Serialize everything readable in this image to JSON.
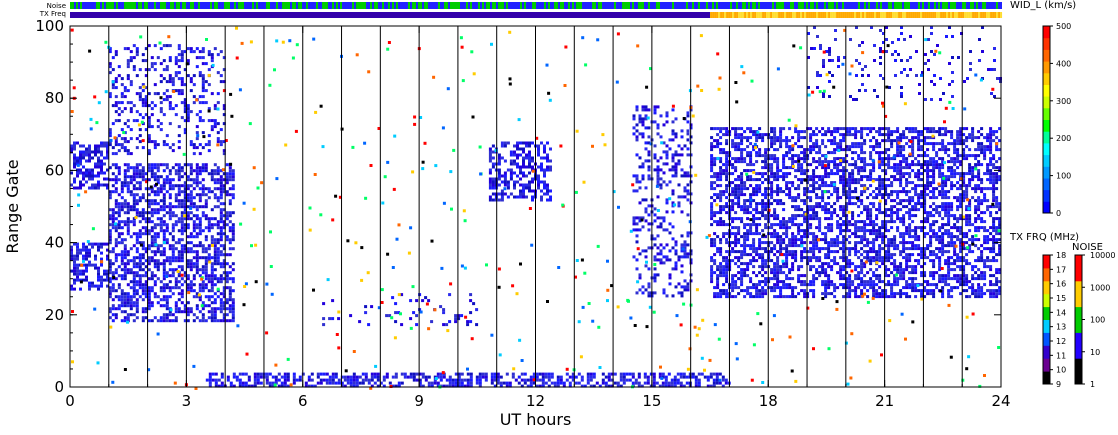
{
  "chart_data": {
    "type": "heatmap",
    "xlabel": "UT hours",
    "ylabel": "Range Gate",
    "xlim": [
      0,
      24
    ],
    "ylim": [
      0,
      100
    ],
    "xticks": [
      "0",
      "3",
      "6",
      "9",
      "12",
      "15",
      "18",
      "21",
      "24"
    ],
    "yticks": [
      "0",
      "20",
      "40",
      "60",
      "80",
      "100"
    ],
    "vertical_lines_hours": [
      1,
      2,
      3,
      4,
      5,
      6,
      7,
      8,
      9,
      10,
      11,
      12,
      13,
      14,
      15,
      16,
      17,
      18,
      19,
      20,
      21,
      22,
      23
    ],
    "strip_labels": [
      "Noise",
      "TX Freq"
    ],
    "scatter_regions": [
      {
        "name": "dense band lower-left",
        "x": [
          1.0,
          4.2
        ],
        "y": [
          18,
          62
        ],
        "density": "high"
      },
      {
        "name": "band near 60",
        "x": [
          0.0,
          1.0
        ],
        "y": [
          55,
          68
        ],
        "density": "high"
      },
      {
        "name": "lower band 0-1h",
        "x": [
          0.0,
          1.0
        ],
        "y": [
          27,
          40
        ],
        "density": "high"
      },
      {
        "name": "upper streak 1-4h",
        "x": [
          1.0,
          4.0
        ],
        "y": [
          65,
          95
        ],
        "density": "medium"
      },
      {
        "name": "near ground echoes",
        "x": [
          3.5,
          17.0
        ],
        "y": [
          0,
          4
        ],
        "density": "high"
      },
      {
        "name": "band 11-12.5h",
        "x": [
          10.8,
          12.4
        ],
        "y": [
          52,
          68
        ],
        "density": "high"
      },
      {
        "name": "band 7-10h",
        "x": [
          6.5,
          10.5
        ],
        "y": [
          17,
          26
        ],
        "density": "low"
      },
      {
        "name": "streak 14.5-16h",
        "x": [
          14.5,
          16.0
        ],
        "y": [
          25,
          78
        ],
        "density": "medium"
      },
      {
        "name": "large blob 16.5-24h",
        "x": [
          16.5,
          24.0
        ],
        "y": [
          25,
          72
        ],
        "density": "high"
      },
      {
        "name": "top cluster 19-24h",
        "x": [
          19.0,
          24.0
        ],
        "y": [
          80,
          100
        ],
        "density": "low"
      }
    ],
    "colorbar_width": {
      "title": "WID_L (km/s)",
      "ticks": [
        "0",
        "100",
        "200",
        "300",
        "400",
        "500"
      ],
      "colors": [
        "#0000ff",
        "#0033ff",
        "#0066ff",
        "#0099ff",
        "#00ccff",
        "#00ffff",
        "#00ff99",
        "#00ff00",
        "#66ff00",
        "#ccff00",
        "#ffff00",
        "#ffcc00",
        "#ff9900",
        "#ff6600",
        "#ff3300",
        "#ff0000"
      ]
    },
    "colorbar_txfreq": {
      "title": "TX FRQ (MHz)",
      "ticks": [
        "9",
        "10",
        "11",
        "12",
        "13",
        "14",
        "15",
        "16",
        "17",
        "18"
      ],
      "colors": [
        "#000000",
        "#6a0090",
        "#3300cc",
        "#0055ff",
        "#00ccff",
        "#00cc00",
        "#ccff00",
        "#ffcc00",
        "#ff6600",
        "#ff0000"
      ]
    },
    "colorbar_noise": {
      "title": "NOISE",
      "ticks": [
        "1",
        "10",
        "100",
        "1000",
        "10000"
      ],
      "colors": [
        "#000000",
        "#2200ff",
        "#00cc00",
        "#ffcc00",
        "#ff0000"
      ]
    },
    "noise_strip_colors": [
      "#00cc00",
      "#2222ff"
    ],
    "txfreq_strip_colors": {
      "before": "#3300aa",
      "after": "#ffaa00"
    },
    "txfreq_change_hour": 16.5
  }
}
